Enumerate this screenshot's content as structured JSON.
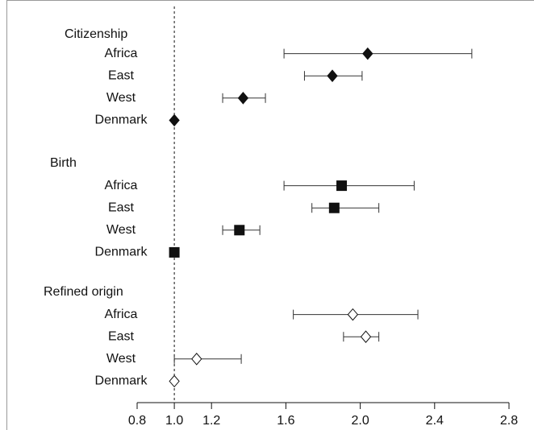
{
  "chart_data": {
    "type": "forest",
    "xlim": [
      0.8,
      2.8
    ],
    "xticks": [
      0.8,
      {
        "value": 1,
        "label": "1.0"
      },
      1.2,
      1.6,
      {
        "value": 2,
        "label": "2.0"
      },
      2.4,
      2.8
    ],
    "reference_line": 1,
    "series": [
      {
        "name": "Citizenship",
        "marker": "diamond",
        "color": "#111111",
        "categories": [
          "Africa",
          "East",
          "West",
          "Denmark"
        ],
        "values": [
          2.04,
          1.85,
          1.37,
          1.0
        ],
        "lower": [
          1.59,
          1.7,
          1.26,
          null
        ],
        "upper": [
          2.6,
          2.01,
          1.49,
          null
        ]
      },
      {
        "name": "Birth",
        "marker": "square",
        "color": "#111111",
        "categories": [
          "Africa",
          "East",
          "West",
          "Denmark"
        ],
        "values": [
          1.9,
          1.86,
          1.35,
          1.0
        ],
        "lower": [
          1.59,
          1.74,
          1.26,
          null
        ],
        "upper": [
          2.29,
          2.1,
          1.46,
          null
        ]
      },
      {
        "name": "Refined origin",
        "marker": "hollow-diamond",
        "color": "#ffffff",
        "categories": [
          "Africa",
          "East",
          "West",
          "Denmark"
        ],
        "values": [
          1.96,
          2.03,
          1.12,
          1.0
        ],
        "lower": [
          1.64,
          1.91,
          1.0,
          null
        ],
        "upper": [
          2.31,
          2.1,
          1.36,
          null
        ]
      }
    ]
  }
}
